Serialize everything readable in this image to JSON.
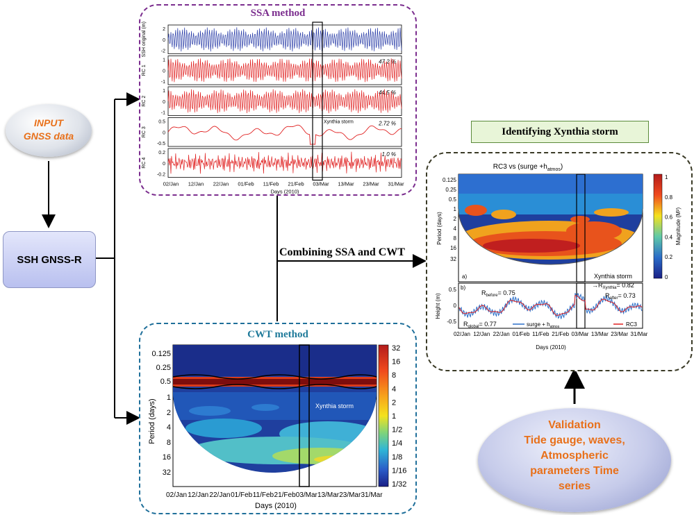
{
  "input": {
    "line1": "INPUT",
    "line2": "GNSS data"
  },
  "ssh_box": {
    "label": "SSH GNSS-R"
  },
  "combine_label": "Combining SSA and CWT",
  "ssa": {
    "title": "SSA method",
    "rows": [
      {
        "ylabel": "SSH original (m)",
        "ticks": [
          "2",
          "0",
          "-2"
        ],
        "pct": ""
      },
      {
        "ylabel": "RC 1",
        "ticks": [
          "1",
          "0",
          "-1"
        ],
        "pct": "47.2 %"
      },
      {
        "ylabel": "RC 2",
        "ticks": [
          "1",
          "0",
          "-1"
        ],
        "pct": "44.5 %"
      },
      {
        "ylabel": "RC 3",
        "ticks": [
          "0.5",
          "0",
          "-0.5"
        ],
        "pct": "2.72 %"
      },
      {
        "ylabel": "RC 4",
        "ticks": [
          "0.2",
          "0",
          "-0.2"
        ],
        "pct": "1.0 %"
      }
    ],
    "storm_label": "Xynthia storm",
    "xticks": [
      "02/Jan",
      "12/Jan",
      "22/Jan",
      "01/Feb",
      "11/Feb",
      "21/Feb",
      "03/Mar",
      "13/Mar",
      "23/Mar",
      "31/Mar"
    ],
    "xlabel": "Days (2010)"
  },
  "cwt": {
    "title": "CWT method",
    "yticks": [
      "0.125",
      "0.25",
      "0.5",
      "1",
      "2",
      "4",
      "8",
      "16",
      "32"
    ],
    "ylabel": "Period (days)",
    "colorbar": [
      "32",
      "16",
      "8",
      "4",
      "2",
      "1",
      "1/2",
      "1/4",
      "1/8",
      "1/16",
      "1/32"
    ],
    "xticks": [
      "02/Jan",
      "12/Jan",
      "22/Jan",
      "01/Feb",
      "11/Feb",
      "21/Feb",
      "03/Mar",
      "13/Mar",
      "23/Mar",
      "31/Mar"
    ],
    "xlabel": "Days (2010)",
    "storm_label": "Xynthia storm"
  },
  "identify": {
    "header": "Identifying Xynthia storm",
    "wtc_title": "RC3 vs (surge +h",
    "wtc_title_sub": "atmos",
    "wtc_title_end": ")",
    "yticks": [
      "0.125",
      "0.25",
      "0.5",
      "1",
      "2",
      "4",
      "8",
      "16",
      "32"
    ],
    "ylabel": "Period (days)",
    "colorbar_ticks": [
      "1",
      "0.8",
      "0.6",
      "0.4",
      "0.2",
      "0"
    ],
    "colorbar_label": "Magnitude (M²)",
    "panel_a": "a)",
    "panel_b": "b)",
    "storm_label": "Xynthia storm",
    "height_ylabel": "Height (m)",
    "height_ticks": [
      "0.5",
      "0",
      "-0.5"
    ],
    "r_before": {
      "r": "R",
      "sub": "before",
      "val": "= 0.75"
    },
    "r_xynthia": {
      "r": "R",
      "sub": "Xynthia",
      "val": "= 0.82"
    },
    "r_after": {
      "r": "R",
      "sub": "after",
      "val": "= 0.73"
    },
    "r_global": {
      "r": "R",
      "sub": "global",
      "val": "= 0.77"
    },
    "legend_surge": "surge + h",
    "legend_surge_sub": "atmos",
    "legend_rc3": "RC3",
    "xticks": [
      "02/Jan",
      "12/Jan",
      "22/Jan",
      "01/Feb",
      "11/Feb",
      "21/Feb",
      "03/Mar",
      "13/Mar",
      "23/Mar",
      "31/Mar"
    ],
    "xlabel": "Days (2010)"
  },
  "validation": {
    "line1": "Validation",
    "line2": "Tide gauge, waves,",
    "line3": "Atmospheric",
    "line4": "parameters Time",
    "line5": "series"
  },
  "colors": {
    "ssa_border": "#7b2d8e",
    "cwt_border": "#1f6f9a",
    "id_border": "#3a3a26",
    "title_purple": "#7b2d8e",
    "title_teal": "#1f7a9a",
    "orange_text": "#e8701a",
    "blue_series": "#2b3ea8",
    "red_series": "#e02020"
  }
}
